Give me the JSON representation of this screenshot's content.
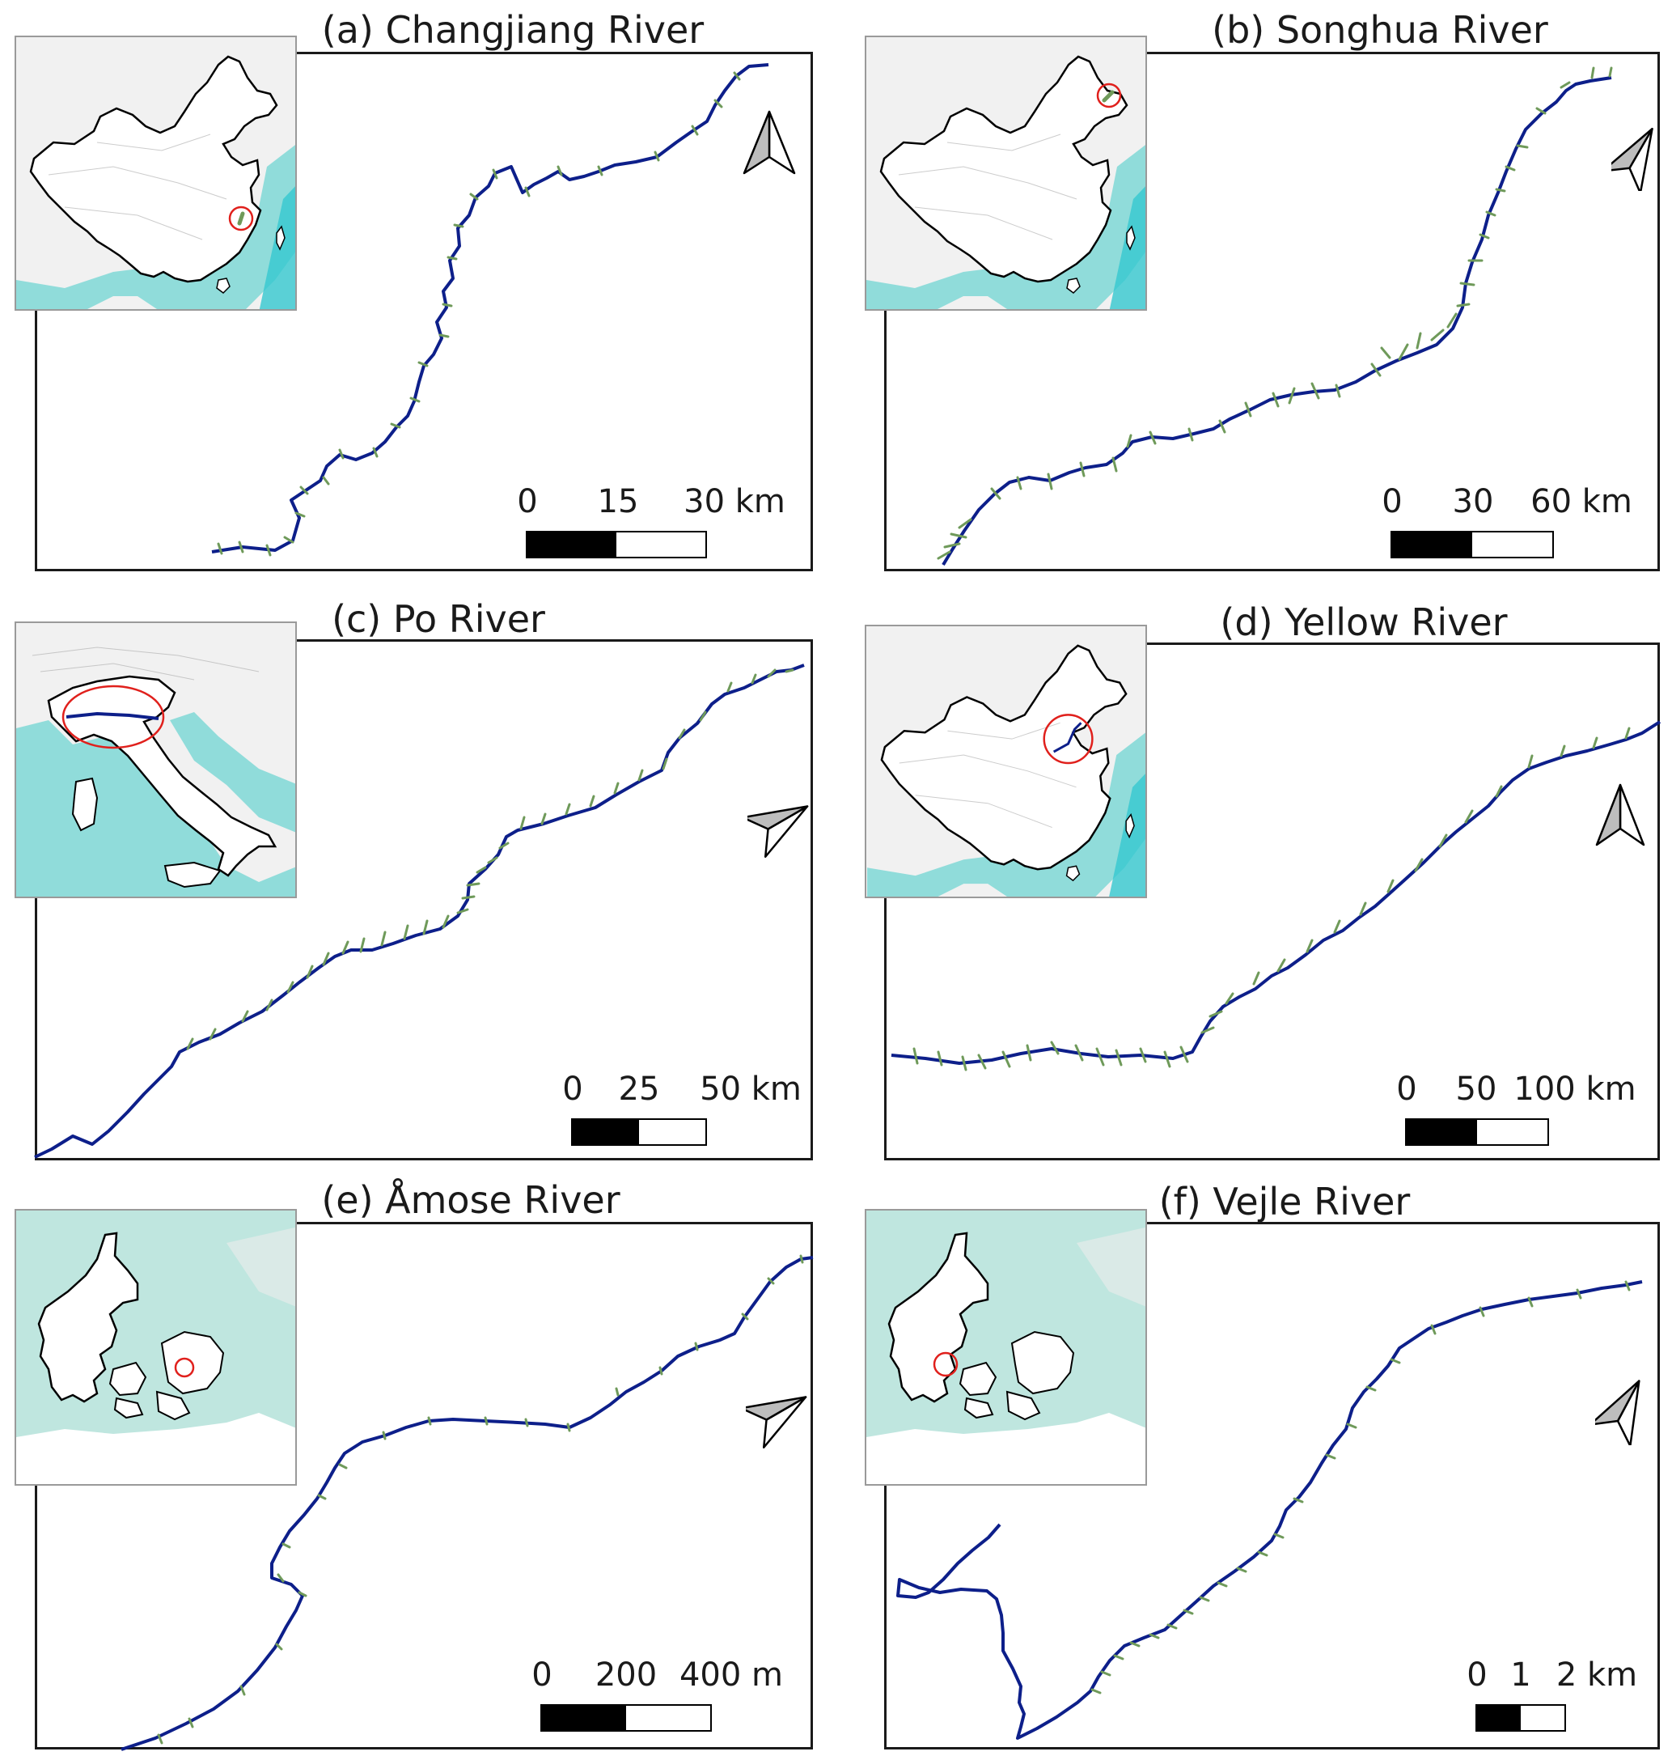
{
  "colors": {
    "river": "#0d1f8a",
    "crossSection": "#6f9a5a",
    "locationCircle": "#e0201c",
    "sea": "#4fd0cf",
    "denmarkSea": "#bfe6df",
    "land": "#f2f2f2",
    "border": "#000000"
  },
  "panels": [
    {
      "id": "a",
      "title": "(a) Changjiang River",
      "scale_labels": [
        "0",
        "15",
        "30 km"
      ],
      "inset": "china",
      "north_arrow_icon": "north-arrow-icon"
    },
    {
      "id": "b",
      "title": "(b) Songhua River",
      "scale_labels": [
        "0",
        "30",
        "60 km"
      ],
      "inset": "china",
      "north_arrow_icon": "north-arrow-icon"
    },
    {
      "id": "c",
      "title": "(c) Po River",
      "scale_labels": [
        "0",
        "25",
        "50 km"
      ],
      "inset": "italy",
      "north_arrow_icon": "north-arrow-icon"
    },
    {
      "id": "d",
      "title": "(d) Yellow River",
      "scale_labels": [
        "0",
        "50",
        "100 km"
      ],
      "inset": "china",
      "north_arrow_icon": "north-arrow-icon"
    },
    {
      "id": "e",
      "title": "(e) Åmose River",
      "scale_labels": [
        "0",
        "200",
        "400 m"
      ],
      "inset": "denmark",
      "north_arrow_icon": "north-arrow-icon"
    },
    {
      "id": "f",
      "title": "(f) Vejle River",
      "scale_labels": [
        "0",
        "1",
        "2 km"
      ],
      "inset": "denmark",
      "north_arrow_icon": "north-arrow-icon"
    }
  ]
}
